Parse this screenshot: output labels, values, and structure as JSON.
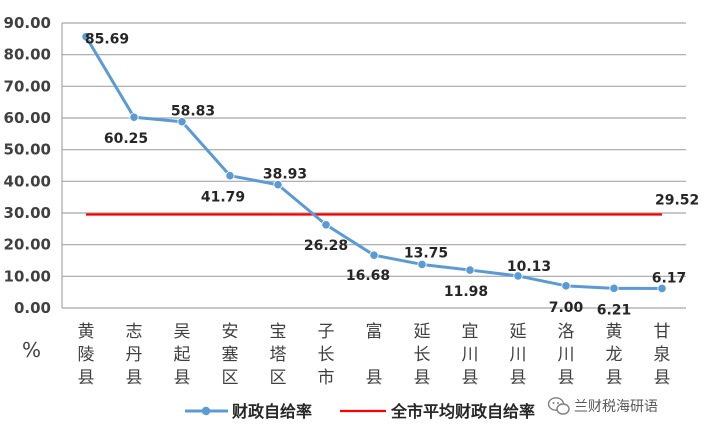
{
  "chart_data": {
    "type": "line",
    "y_unit_label": "%",
    "categories": [
      "黄陵县",
      "志丹县",
      "吴起县",
      "安塞区",
      "宝塔区",
      "子长市",
      "富县",
      "延长县",
      "宜川县",
      "延川县",
      "洛川县",
      "黄龙县",
      "甘泉县"
    ],
    "category_display": [
      "黄\n陵\n县",
      "志\n丹\n县",
      "吴\n起\n县",
      "安\n塞\n区",
      "宝\n塔\n区",
      "子\n长\n市",
      "富\n\n县",
      "延\n长\n县",
      "宜\n川\n县",
      "延\n川\n县",
      "洛\n川\n县",
      "黄\n龙\n县",
      "甘\n泉\n县"
    ],
    "ylim": [
      0,
      90
    ],
    "yticks": [
      "0.00",
      "10.00",
      "20.00",
      "30.00",
      "40.00",
      "50.00",
      "60.00",
      "70.00",
      "80.00",
      "90.00"
    ],
    "grid": true,
    "legend_position": "bottom",
    "series": [
      {
        "name": "财政自给率",
        "color": "#5B9BD5",
        "values": [
          85.69,
          60.25,
          58.83,
          41.79,
          38.93,
          26.28,
          16.68,
          13.75,
          11.98,
          10.13,
          7.0,
          6.21,
          6.17
        ],
        "labels": [
          "85.69",
          "60.25",
          "58.83",
          "41.79",
          "38.93",
          "26.28",
          "16.68",
          "13.75",
          "11.98",
          "10.13",
          "7.00",
          "6.21",
          "6.17"
        ]
      },
      {
        "name": "全市平均财政自给率",
        "color": "#FF0000",
        "value": 29.52,
        "label": "29.52"
      }
    ]
  },
  "watermark": {
    "text": "兰财税海研语",
    "icon": "wechat-icon"
  }
}
